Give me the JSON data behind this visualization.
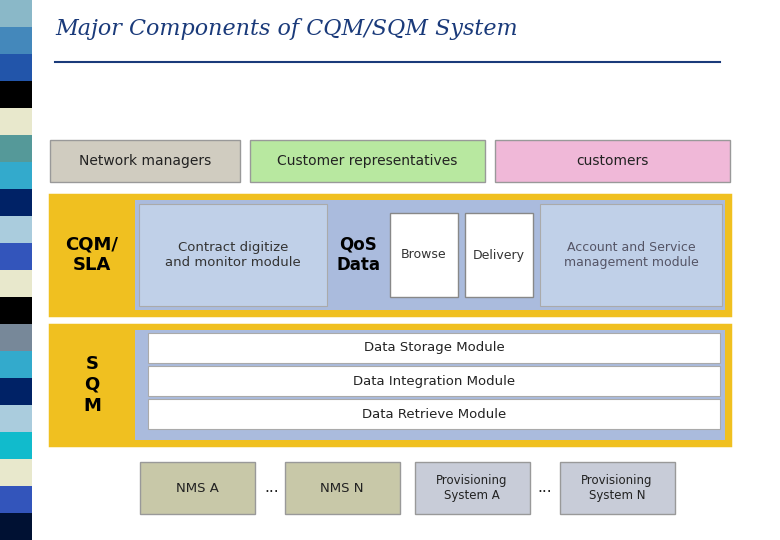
{
  "title": "Major Components of CQM/SQM System",
  "title_color": "#1a3a7a",
  "title_fontsize": 16,
  "bg_color": "#ffffff",
  "sidebar_colors": [
    "#8ab8c8",
    "#4488bb",
    "#2255aa",
    "#000000",
    "#e8e8cc",
    "#559999",
    "#33aacc",
    "#002266",
    "#aaccdd",
    "#3355bb",
    "#e8e8cc",
    "#000000",
    "#778899",
    "#33aacc",
    "#002266",
    "#aaccdd",
    "#11bbcc",
    "#e8e8cc",
    "#3355bb",
    "#001133"
  ],
  "row1_labels": [
    "Network managers",
    "Customer representatives",
    "customers"
  ],
  "row1_colors": [
    "#d0ccc0",
    "#b8e8a0",
    "#f0b8d8"
  ],
  "row1_text_color": "#222222",
  "cqm_label": "CQM/\nSLA",
  "cqm_label_color": "#000000",
  "cqm_outer_color": "#f0c020",
  "cqm_inner_color": "#aabbdd",
  "contract_label": "Contract digitize\nand monitor module",
  "contract_box_color": "#c0d0e8",
  "qos_label": "QoS\nData",
  "browse_label": "Browse",
  "delivery_label": "Delivery",
  "account_label": "Account and Service\nmanagement module",
  "account_text_color": "#555566",
  "sqm_label": "S\nQ\nM",
  "sqm_outer_color": "#f0c020",
  "sqm_inner_color": "#aabbdd",
  "data_modules": [
    "Data Storage Module",
    "Data Integration Module",
    "Data Retrieve Module"
  ],
  "data_mod_box_color": "#ffffff",
  "bottom_box_color": "#c8c8a8",
  "bottom_prov_color": "#c8ccd8",
  "bottom_items": [
    "NMS A",
    "...",
    "NMS N",
    "Provisioning\nSystem A",
    "...",
    "Provisioning\nSystem N"
  ]
}
